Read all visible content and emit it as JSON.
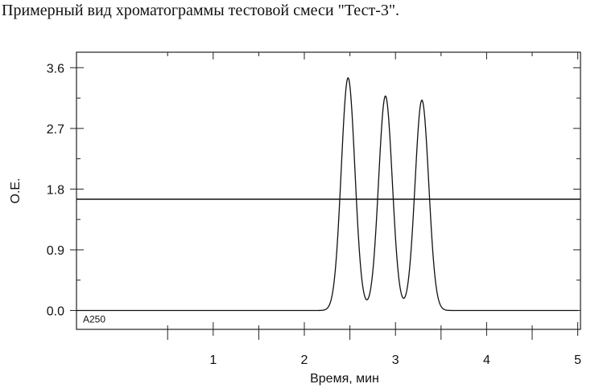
{
  "caption": "Примерный вид хроматограммы тестовой смеси \"Тест-3\".",
  "chart_data": {
    "type": "line",
    "title": "",
    "xlabel": "Время, мин",
    "ylabel": "О.Е.",
    "xlim": [
      -0.5,
      5.03
    ],
    "ylim": [
      -0.28,
      3.83
    ],
    "x_ticks": [
      1,
      2,
      3,
      4,
      5
    ],
    "x_tick_labels": [
      "1",
      "2",
      "3",
      "4",
      "5"
    ],
    "y_ticks": [
      0.0,
      0.9,
      1.8,
      2.7,
      3.6
    ],
    "y_tick_labels": [
      "0.0",
      "0.9",
      "1.8",
      "2.7",
      "3.6"
    ],
    "grid": false,
    "annotations": [
      "A250"
    ],
    "baseline_x": [
      -0.5,
      5.0
    ],
    "peaks": [
      {
        "x": 2.48,
        "y": 3.45
      },
      {
        "x": 2.89,
        "y": 3.18
      },
      {
        "x": 3.29,
        "y": 3.12
      }
    ],
    "reference_line": {
      "y": 1.65,
      "x": [
        -0.5,
        5.03
      ]
    }
  }
}
